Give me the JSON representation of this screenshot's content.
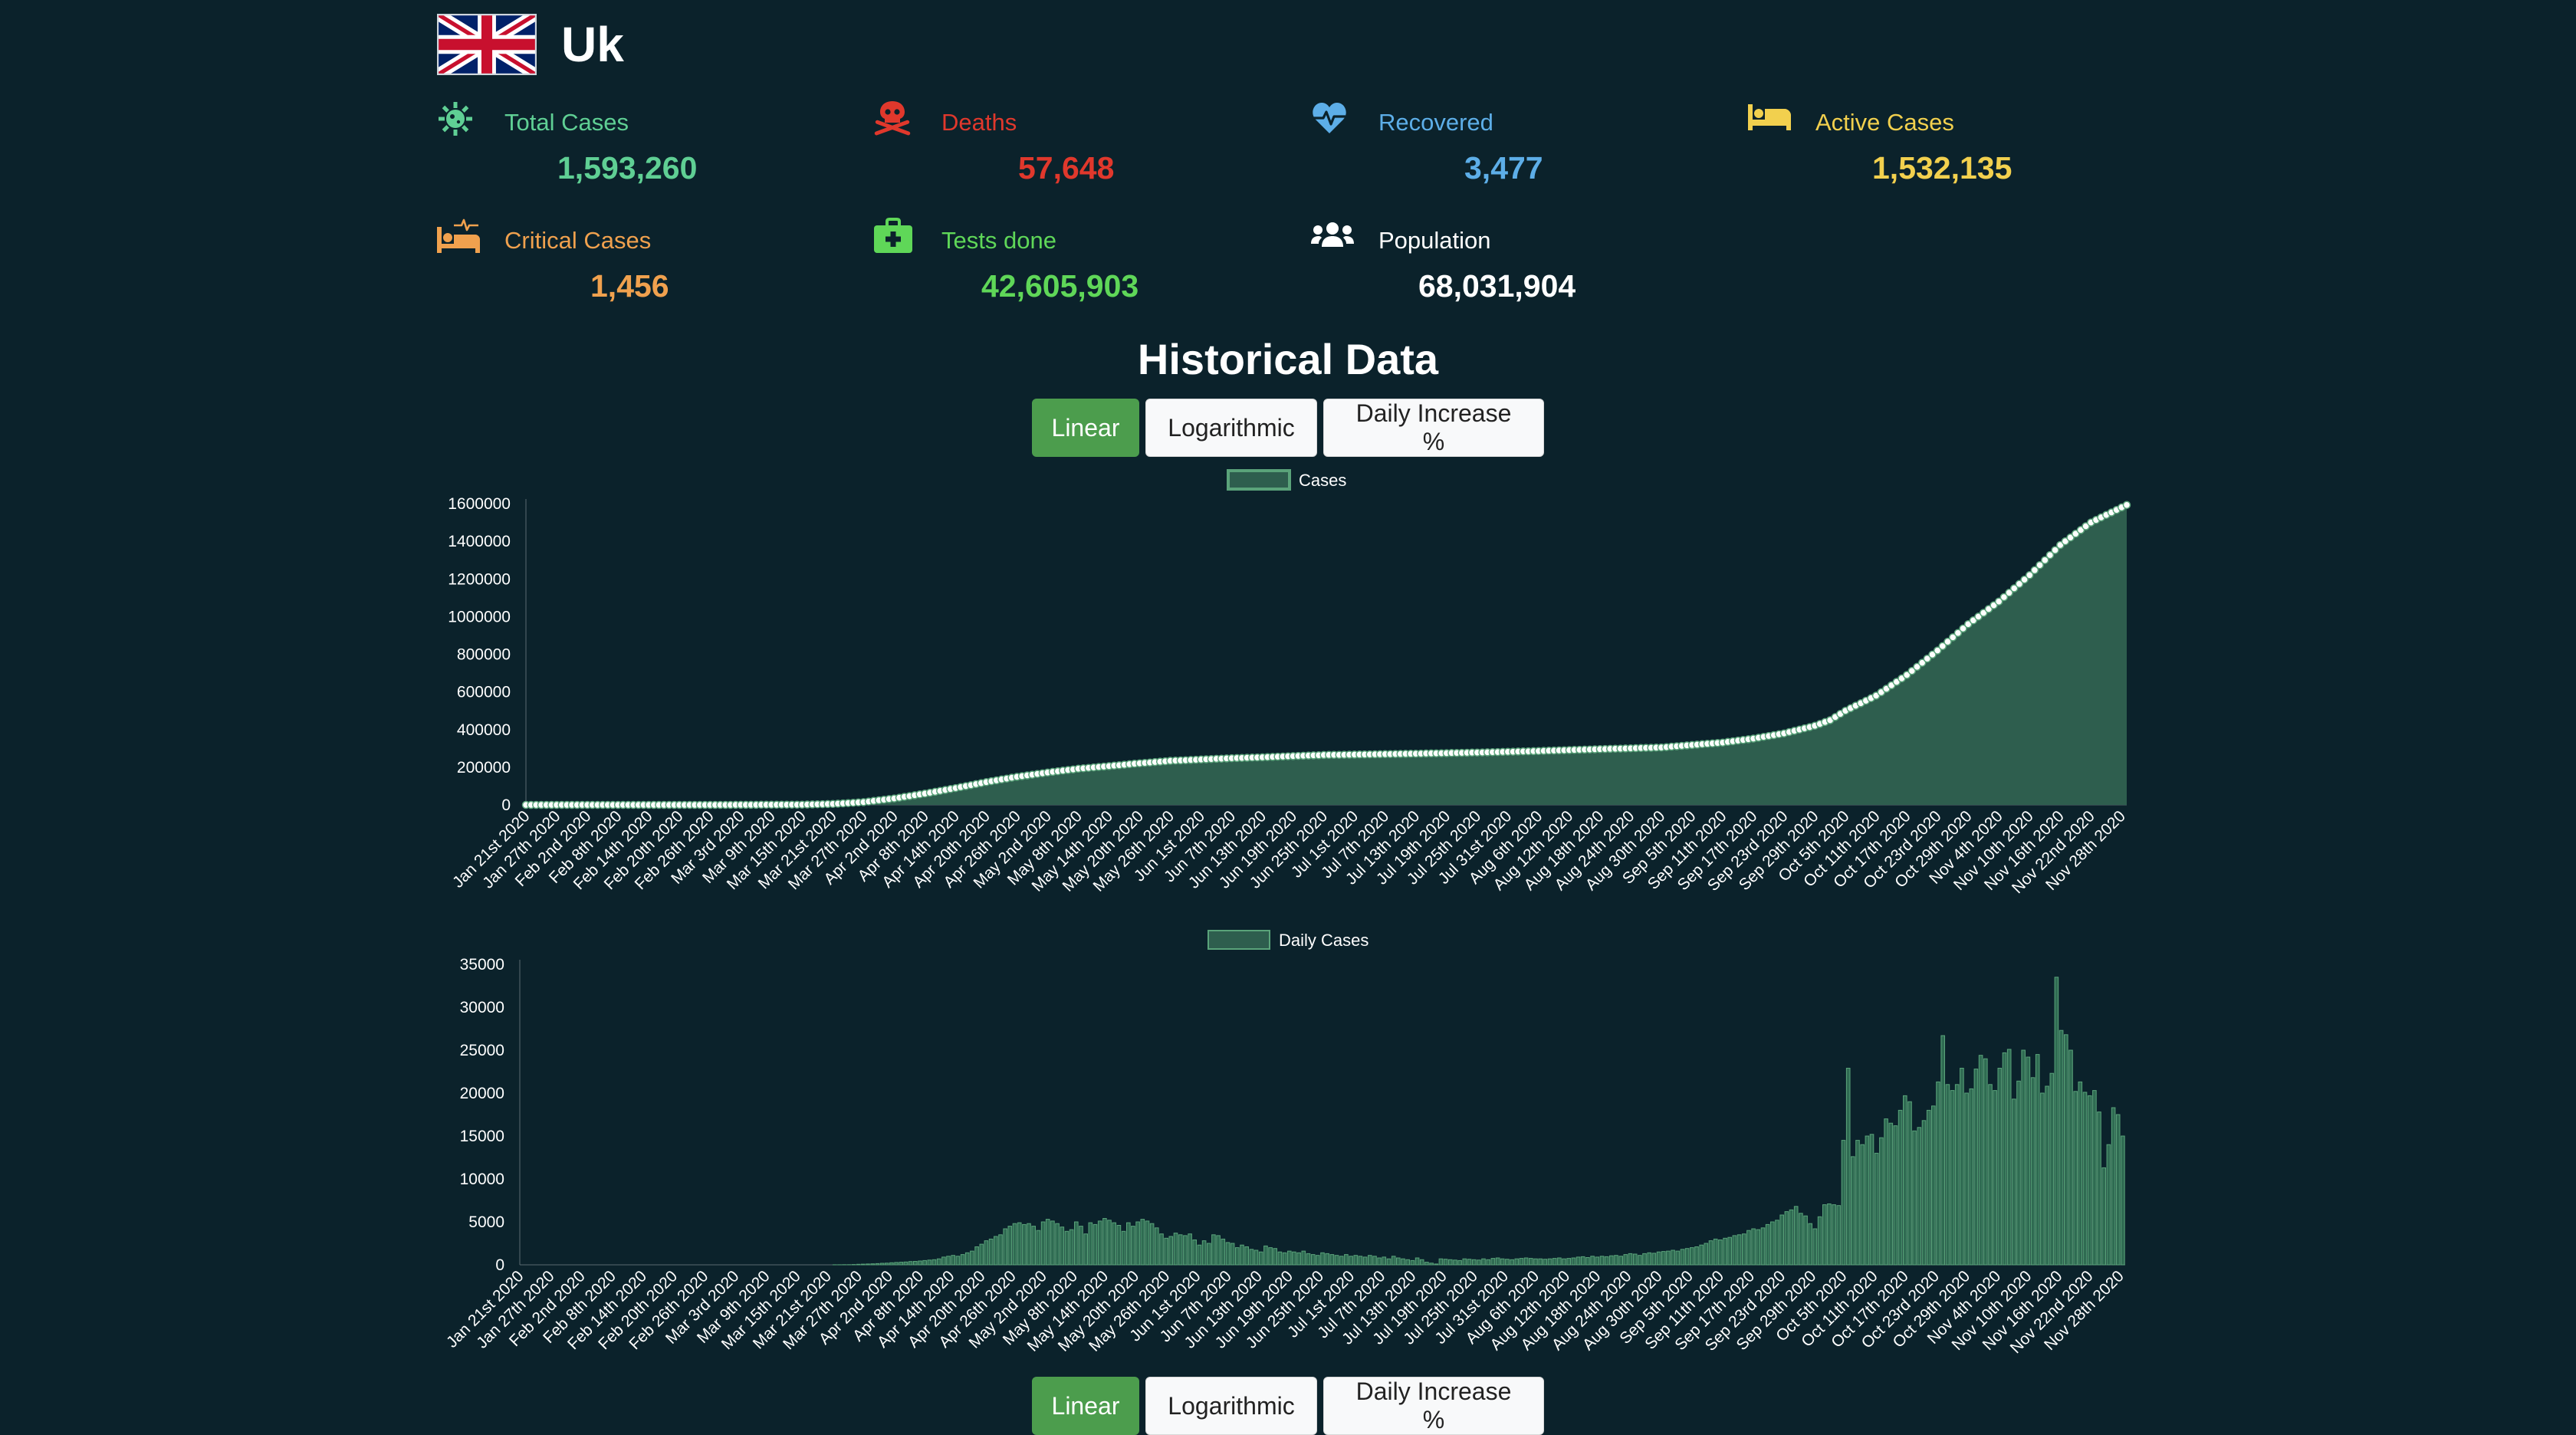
{
  "country": {
    "name": "Uk"
  },
  "stats": {
    "total_cases": {
      "label": "Total Cases",
      "value": "1,593,260",
      "color": "#5fcf94"
    },
    "deaths": {
      "label": "Deaths",
      "value": "57,648",
      "color": "#e0382c"
    },
    "recovered": {
      "label": "Recovered",
      "value": "3,477",
      "color": "#5daee8"
    },
    "active_cases": {
      "label": "Active Cases",
      "value": "1,532,135",
      "color": "#f2d04e"
    },
    "critical_cases": {
      "label": "Critical Cases",
      "value": "1,456",
      "color": "#f0a14e"
    },
    "tests_done": {
      "label": "Tests done",
      "value": "42,605,903",
      "color": "#5fd758"
    },
    "population": {
      "label": "Population",
      "value": "68,031,904",
      "color": "#ffffff"
    }
  },
  "historical": {
    "title": "Historical Data",
    "buttons": [
      "Linear",
      "Logarithmic",
      "Daily Increase %"
    ],
    "active_button": "Linear"
  },
  "colors": {
    "background": "#0b222b",
    "fill": "#2e5e4e",
    "line": "#5aa37a",
    "button_active": "#4c9d4d"
  },
  "chart_data": [
    {
      "type": "line",
      "series": [
        {
          "name": "Cases"
        }
      ],
      "x_ticks": [
        "Jan 21st 2020",
        "Jan 27th 2020",
        "Feb 2nd 2020",
        "Feb 8th 2020",
        "Feb 14th 2020",
        "Feb 20th 2020",
        "Feb 26th 2020",
        "Mar 3rd 2020",
        "Mar 9th 2020",
        "Mar 15th 2020",
        "Mar 21st 2020",
        "Mar 27th 2020",
        "Apr 2nd 2020",
        "Apr 8th 2020",
        "Apr 14th 2020",
        "Apr 20th 2020",
        "Apr 26th 2020",
        "May 2nd 2020",
        "May 8th 2020",
        "May 14th 2020",
        "May 20th 2020",
        "May 26th 2020",
        "Jun 1st 2020",
        "Jun 7th 2020",
        "Jun 13th 2020",
        "Jun 19th 2020",
        "Jun 25th 2020",
        "Jul 1st 2020",
        "Jul 7th 2020",
        "Jul 13th 2020",
        "Jul 19th 2020",
        "Jul 25th 2020",
        "Jul 31st 2020",
        "Aug 6th 2020",
        "Aug 12th 2020",
        "Aug 18th 2020",
        "Aug 24th 2020",
        "Aug 30th 2020",
        "Sep 5th 2020",
        "Sep 11th 2020",
        "Sep 17th 2020",
        "Sep 23rd 2020",
        "Sep 29th 2020",
        "Oct 5th 2020",
        "Oct 11th 2020",
        "Oct 17th 2020",
        "Oct 23rd 2020",
        "Oct 29th 2020",
        "Nov 4th 2020",
        "Nov 10th 2020",
        "Nov 16th 2020",
        "Nov 22nd 2020",
        "Nov 28th 2020"
      ],
      "x_range": [
        "Jan 21st 2020",
        "Nov 29th 2020"
      ],
      "y_ticks": [
        "0",
        "200000",
        "400000",
        "600000",
        "800000",
        "1000000",
        "1200000",
        "1400000",
        "1600000"
      ],
      "ylim": [
        0,
        1600000
      ],
      "points": [
        [
          "Jan 21st 2020",
          0
        ],
        [
          "Feb 29th 2020",
          20
        ],
        [
          "Mar 15th 2020",
          1400
        ],
        [
          "Mar 21st 2020",
          5000
        ],
        [
          "Mar 27th 2020",
          14500
        ],
        [
          "Apr 2nd 2020",
          34000
        ],
        [
          "Apr 8th 2020",
          60000
        ],
        [
          "Apr 14th 2020",
          89000
        ],
        [
          "Apr 20th 2020",
          121000
        ],
        [
          "Apr 26th 2020",
          149000
        ],
        [
          "May 2nd 2020",
          172000
        ],
        [
          "May 8th 2020",
          192000
        ],
        [
          "May 14th 2020",
          206000
        ],
        [
          "May 20th 2020",
          221000
        ],
        [
          "May 26th 2020",
          234000
        ],
        [
          "Jun 1st 2020",
          241000
        ],
        [
          "Jun 7th 2020",
          248000
        ],
        [
          "Jun 13th 2020",
          253000
        ],
        [
          "Jun 19th 2020",
          259000
        ],
        [
          "Jun 25th 2020",
          265000
        ],
        [
          "Jul 1st 2020",
          267000
        ],
        [
          "Jul 13th 2020",
          272000
        ],
        [
          "Jul 25th 2020",
          278000
        ],
        [
          "Aug 6th 2020",
          286000
        ],
        [
          "Aug 18th 2020",
          296000
        ],
        [
          "Aug 30th 2020",
          305000
        ],
        [
          "Sep 5th 2020",
          318000
        ],
        [
          "Sep 11th 2020",
          331000
        ],
        [
          "Sep 17th 2020",
          352000
        ],
        [
          "Sep 23rd 2020",
          380000
        ],
        [
          "Sep 29th 2020",
          420000
        ],
        [
          "Oct 2nd 2020",
          450000
        ],
        [
          "Oct 5th 2020",
          500000
        ],
        [
          "Oct 11th 2020",
          580000
        ],
        [
          "Oct 17th 2020",
          690000
        ],
        [
          "Oct 23rd 2020",
          820000
        ],
        [
          "Oct 29th 2020",
          960000
        ],
        [
          "Nov 4th 2020",
          1080000
        ],
        [
          "Nov 10th 2020",
          1220000
        ],
        [
          "Nov 16th 2020",
          1380000
        ],
        [
          "Nov 22nd 2020",
          1500000
        ],
        [
          "Nov 29th 2020",
          1593260
        ]
      ]
    },
    {
      "type": "bar",
      "series": [
        {
          "name": "Daily Cases"
        }
      ],
      "x_ticks": [
        "Jan 21st 2020",
        "Jan 27th 2020",
        "Feb 2nd 2020",
        "Feb 8th 2020",
        "Feb 14th 2020",
        "Feb 20th 2020",
        "Feb 26th 2020",
        "Mar 3rd 2020",
        "Mar 9th 2020",
        "Mar 15th 2020",
        "Mar 21st 2020",
        "Mar 27th 2020",
        "Apr 2nd 2020",
        "Apr 8th 2020",
        "Apr 14th 2020",
        "Apr 20th 2020",
        "Apr 26th 2020",
        "May 2nd 2020",
        "May 8th 2020",
        "May 14th 2020",
        "May 20th 2020",
        "May 26th 2020",
        "Jun 1st 2020",
        "Jun 7th 2020",
        "Jun 13th 2020",
        "Jun 19th 2020",
        "Jun 25th 2020",
        "Jul 1st 2020",
        "Jul 7th 2020",
        "Jul 13th 2020",
        "Jul 19th 2020",
        "Jul 25th 2020",
        "Jul 31st 2020",
        "Aug 6th 2020",
        "Aug 12th 2020",
        "Aug 18th 2020",
        "Aug 24th 2020",
        "Aug 30th 2020",
        "Sep 5th 2020",
        "Sep 11th 2020",
        "Sep 17th 2020",
        "Sep 23rd 2020",
        "Sep 29th 2020",
        "Oct 5th 2020",
        "Oct 11th 2020",
        "Oct 17th 2020",
        "Oct 23rd 2020",
        "Oct 29th 2020",
        "Nov 4th 2020",
        "Nov 10th 2020",
        "Nov 16th 2020",
        "Nov 22nd 2020",
        "Nov 28th 2020"
      ],
      "x_range": [
        "Jan 21st 2020",
        "Nov 29th 2020"
      ],
      "y_ticks": [
        "0",
        "5000",
        "10000",
        "15000",
        "20000",
        "25000",
        "30000",
        "35000"
      ],
      "ylim": [
        0,
        35000
      ],
      "values": [
        0,
        0,
        0,
        0,
        0,
        0,
        0,
        0,
        0,
        0,
        0,
        0,
        0,
        0,
        0,
        0,
        0,
        0,
        0,
        0,
        0,
        0,
        0,
        0,
        0,
        0,
        0,
        0,
        0,
        0,
        0,
        0,
        0,
        0,
        0,
        0,
        0,
        0,
        0,
        0,
        0,
        0,
        0,
        0,
        0,
        0,
        0,
        0,
        0,
        0,
        0,
        0,
        0,
        0,
        0,
        0,
        0,
        0,
        0,
        0,
        0,
        0,
        0,
        0,
        0,
        0,
        5,
        10,
        15,
        20,
        40,
        60,
        80,
        100,
        120,
        140,
        180,
        200,
        240,
        280,
        300,
        330,
        380,
        400,
        450,
        500,
        550,
        600,
        700,
        900,
        1000,
        1100,
        1000,
        1200,
        1400,
        1600,
        2100,
        2400,
        2800,
        3000,
        3300,
        3500,
        4200,
        4500,
        4800,
        4900,
        4700,
        4800,
        4500,
        4000,
        5000,
        5300,
        5100,
        4800,
        4400,
        3900,
        4100,
        5000,
        4500,
        3600,
        4900,
        4700,
        5100,
        5400,
        5200,
        4900,
        4600,
        3900,
        4900,
        4500,
        5000,
        5300,
        5100,
        4800,
        4300,
        3600,
        3100,
        3300,
        3700,
        3500,
        3400,
        3600,
        2900,
        2300,
        2800,
        2500,
        3500,
        3400,
        3000,
        2600,
        2500,
        2000,
        2300,
        2100,
        1800,
        1700,
        1500,
        2200,
        2000,
        1900,
        1500,
        1400,
        1600,
        1500,
        1400,
        1600,
        1300,
        1200,
        1100,
        1400,
        1300,
        1200,
        1100,
        1000,
        1200,
        1000,
        1100,
        1000,
        900,
        1100,
        1000,
        800,
        900,
        700,
        1000,
        800,
        700,
        600,
        500,
        800,
        600,
        300,
        200,
        100,
        700,
        650,
        600,
        550,
        500,
        700,
        650,
        600,
        550,
        700,
        600,
        750,
        800,
        700,
        650,
        600,
        700,
        750,
        800,
        750,
        700,
        700,
        650,
        700,
        750,
        800,
        700,
        750,
        800,
        900,
        950,
        850,
        1000,
        900,
        1000,
        950,
        1050,
        1100,
        1000,
        1200,
        1300,
        1250,
        1100,
        1300,
        1400,
        1350,
        1500,
        1550,
        1600,
        1700,
        1600,
        1800,
        1900,
        2000,
        2100,
        2300,
        2500,
        2800,
        3000,
        2900,
        3100,
        3200,
        3400,
        3500,
        3600,
        4000,
        4200,
        4100,
        4300,
        4700,
        5000,
        5200,
        5800,
        6200,
        6400,
        6800,
        6000,
        5700,
        4800,
        4200,
        5600,
        7000,
        7100,
        7000,
        6900,
        14500,
        22900,
        12600,
        14500,
        14000,
        15000,
        15200,
        13000,
        14800,
        17000,
        16500,
        16200,
        18000,
        19700,
        19000,
        15600,
        16000,
        16800,
        18000,
        18500,
        21300,
        26700,
        21000,
        20300,
        21000,
        22900,
        20000,
        20500,
        22800,
        24400,
        24000,
        21000,
        20300,
        22900,
        24700,
        25100,
        19300,
        21400,
        25000,
        24200,
        21800,
        24500,
        20000,
        20800,
        22300,
        33500,
        27300,
        26800,
        25000,
        20200,
        21300,
        20100,
        19700,
        20300,
        17800,
        11300,
        14000,
        18300,
        17500,
        15000
      ]
    }
  ]
}
